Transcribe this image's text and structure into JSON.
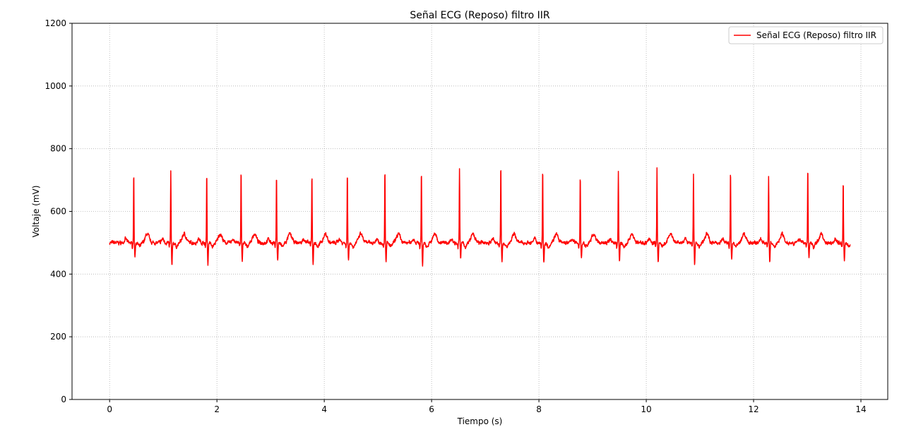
{
  "chart_data": {
    "type": "line",
    "title": "Señal ECG (Reposo) filtro IIR",
    "xlabel": "Tiempo (s)",
    "ylabel": "Voltaje (mV)",
    "xlim": [
      -0.7,
      14.5
    ],
    "ylim": [
      0,
      1200
    ],
    "xticks": [
      0,
      2,
      4,
      6,
      8,
      10,
      12,
      14
    ],
    "yticks": [
      0,
      200,
      400,
      600,
      800,
      1000,
      1200
    ],
    "grid": true,
    "grid_style": "dotted",
    "legend_position": "top-right",
    "series": [
      {
        "name": "Señal ECG (Reposo) filtro IIR",
        "color": "#ff0000",
        "duration": 13.8,
        "baseline": 500,
        "r_peaks": [
          {
            "t": 0.45,
            "v": 724,
            "s_min": 458
          },
          {
            "t": 1.14,
            "v": 724,
            "s_min": 423
          },
          {
            "t": 1.81,
            "v": 725,
            "s_min": 430
          },
          {
            "t": 2.45,
            "v": 737,
            "s_min": 440
          },
          {
            "t": 3.11,
            "v": 721,
            "s_min": 442
          },
          {
            "t": 3.77,
            "v": 722,
            "s_min": 433
          },
          {
            "t": 4.43,
            "v": 730,
            "s_min": 443
          },
          {
            "t": 5.13,
            "v": 739,
            "s_min": 436
          },
          {
            "t": 5.81,
            "v": 731,
            "s_min": 427
          },
          {
            "t": 6.52,
            "v": 738,
            "s_min": 450
          },
          {
            "t": 7.29,
            "v": 746,
            "s_min": 436
          },
          {
            "t": 8.07,
            "v": 739,
            "s_min": 432
          },
          {
            "t": 8.77,
            "v": 716,
            "s_min": 448
          },
          {
            "t": 9.48,
            "v": 727,
            "s_min": 437
          },
          {
            "t": 10.2,
            "v": 736,
            "s_min": 436
          },
          {
            "t": 10.88,
            "v": 721,
            "s_min": 432
          },
          {
            "t": 11.57,
            "v": 731,
            "s_min": 445
          },
          {
            "t": 12.28,
            "v": 711,
            "s_min": 437
          },
          {
            "t": 13.01,
            "v": 741,
            "s_min": 452
          },
          {
            "t": 13.67,
            "v": 700,
            "s_min": 447
          }
        ]
      }
    ]
  }
}
